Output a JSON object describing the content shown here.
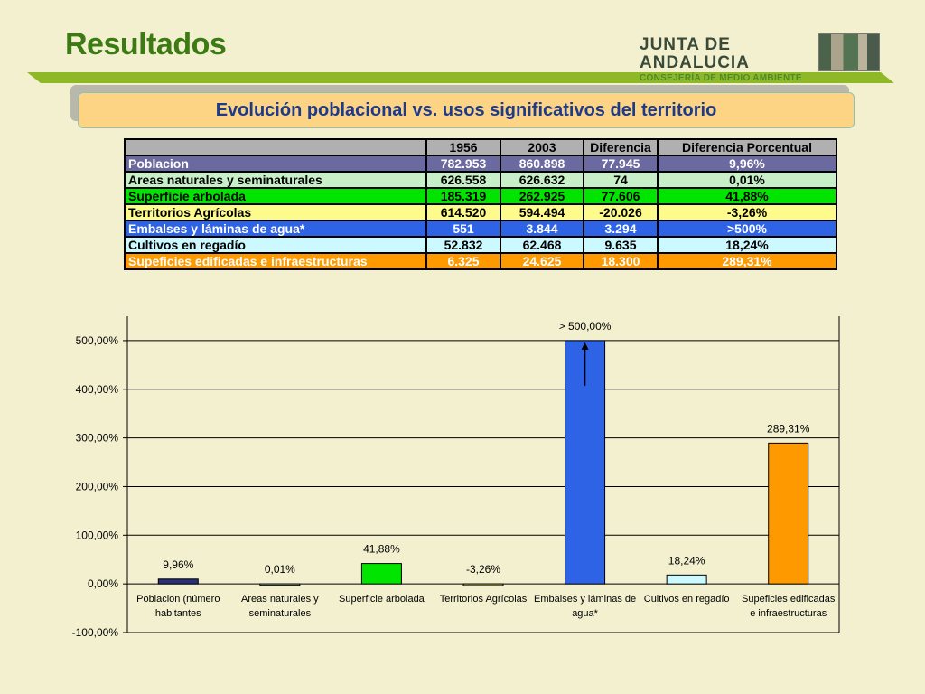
{
  "header": {
    "title": "Resultados",
    "logo_line1": "JUNTA DE ANDALUCIA",
    "logo_line2": "CONSEJERÍA DE MEDIO AMBIENTE",
    "subtitle": "Evolución poblacional vs. usos significativos del territorio"
  },
  "table": {
    "headers": [
      "",
      "1956",
      "2003",
      "Diferencia",
      "Diferencia Porcentual"
    ],
    "rows": [
      {
        "label": "Poblacion",
        "y1956": "782.953",
        "y2003": "860.898",
        "diff": "77.945",
        "pct": "9,96%",
        "bg": "#6b6aa0",
        "color": "#ffffff"
      },
      {
        "label": "Areas naturales y seminaturales",
        "y1956": "626.558",
        "y2003": "626.632",
        "diff": "74",
        "pct": "0,01%",
        "bg": "#c8f0c8",
        "color": "#000000"
      },
      {
        "label": "Superficie arbolada",
        "y1956": "185.319",
        "y2003": "262.925",
        "diff": "77.606",
        "pct": "41,88%",
        "bg": "#00e400",
        "color": "#000000"
      },
      {
        "label": "Territorios Agrícolas",
        "y1956": "614.520",
        "y2003": "594.494",
        "diff": "-20.026",
        "pct": "-3,26%",
        "bg": "#fdfb8c",
        "color": "#000000"
      },
      {
        "label": "Embalses y láminas de agua*",
        "y1956": "551",
        "y2003": "3.844",
        "diff": "3.294",
        "pct": ">500%",
        "bg": "#2f63e6",
        "color": "#ffffff"
      },
      {
        "label": "Cultivos en regadío",
        "y1956": "52.832",
        "y2003": "62.468",
        "diff": "9.635",
        "pct": "18,24%",
        "bg": "#ccf8ff",
        "color": "#000000"
      },
      {
        "label": "Supeficies edificadas e infraestructuras",
        "y1956": "6.325",
        "y2003": "24.625",
        "diff": "18.300",
        "pct": "289,31%",
        "bg": "#ff9900",
        "color": "#ffffff"
      }
    ]
  },
  "chart_data": {
    "type": "bar",
    "categories": [
      [
        "Poblacion (número",
        "habitantes"
      ],
      [
        "Areas naturales y",
        "seminaturales"
      ],
      [
        "Superficie arbolada"
      ],
      [
        "Territorios Agrícolas"
      ],
      [
        "Embalses y láminas de",
        "agua*"
      ],
      [
        "Cultivos en regadío"
      ],
      [
        "Supeficies edificadas",
        "e infraestructuras"
      ]
    ],
    "values": [
      9.96,
      0.01,
      41.88,
      -3.26,
      550,
      18.24,
      289.31
    ],
    "data_labels": [
      "9,96%",
      "0,01%",
      "41,88%",
      "-3,26%",
      "> 500,00%",
      "18,24%",
      "289,31%"
    ],
    "colors": [
      "#2b2f7a",
      "#c8f0c8",
      "#00e400",
      "#f5f37a",
      "#2f63e6",
      "#ccf8ff",
      "#ff9900"
    ],
    "ylim": [
      -100,
      550
    ],
    "yticks": [
      -100,
      0,
      100,
      200,
      300,
      400,
      500
    ],
    "ytick_labels": [
      "-100,00%",
      "0,00%",
      "100,00%",
      "200,00%",
      "300,00%",
      "400,00%",
      "500,00%"
    ],
    "title": "",
    "xlabel": "",
    "ylabel": "",
    "grid": "horizontal"
  }
}
